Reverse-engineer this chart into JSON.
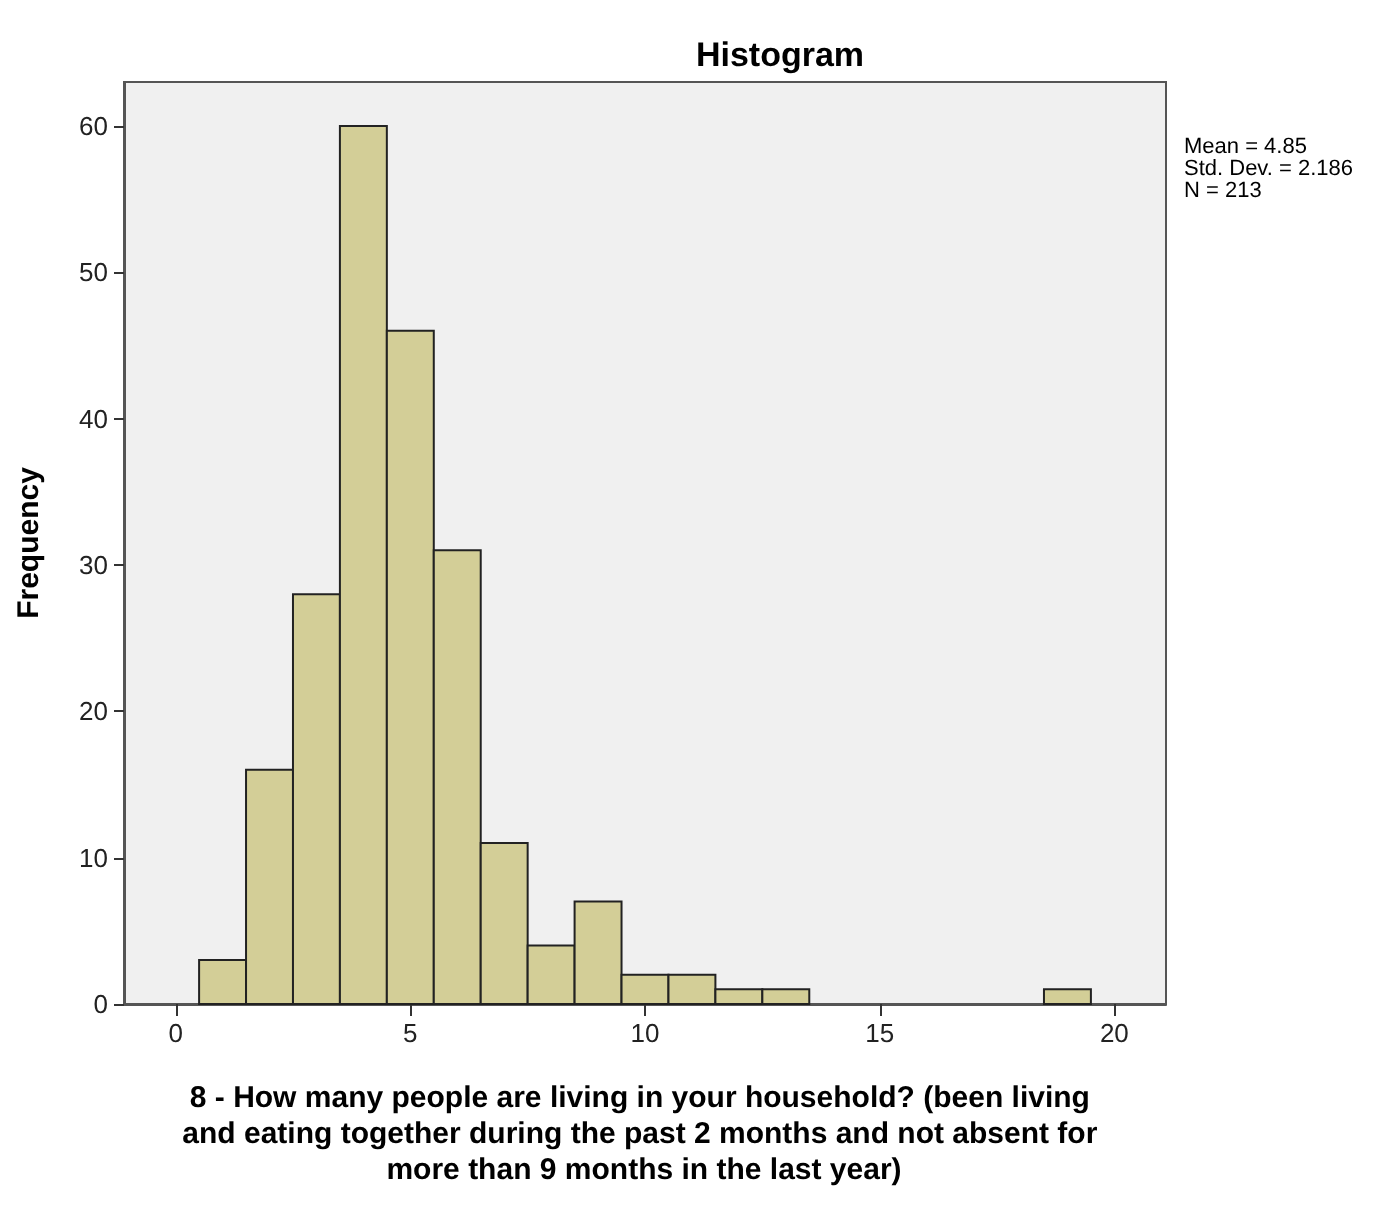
{
  "chart_data": {
    "type": "histogram",
    "title": "Histogram",
    "xlabel": "8 - How many people are living in your household? (been living and eating together during the past 2 months and not absent for more than 9 months in the last year)",
    "ylabel": "Frequency",
    "annotations": [
      "Mean = 4.85",
      "Std. Dev. = 2.186",
      "N = 213"
    ],
    "bins": [
      0.5,
      1.5,
      2.5,
      3.5,
      4.5,
      5.5,
      6.5,
      7.5,
      8.5,
      9.5,
      10.5,
      11.5,
      12.5,
      13.5,
      14.5,
      15.5,
      16.5,
      17.5,
      18.5,
      19.5
    ],
    "values": [
      3,
      16,
      28,
      60,
      46,
      31,
      11,
      4,
      7,
      2,
      2,
      1,
      1,
      0,
      0,
      0,
      0,
      0,
      1
    ],
    "color": "#d3ce97",
    "xlim": [
      -1.1,
      21.1
    ],
    "xticks": [
      0,
      5,
      10,
      15,
      20
    ],
    "ylim": [
      0,
      63
    ],
    "yticks": [
      0,
      10,
      20,
      30,
      40,
      50,
      60
    ],
    "grid": false
  }
}
